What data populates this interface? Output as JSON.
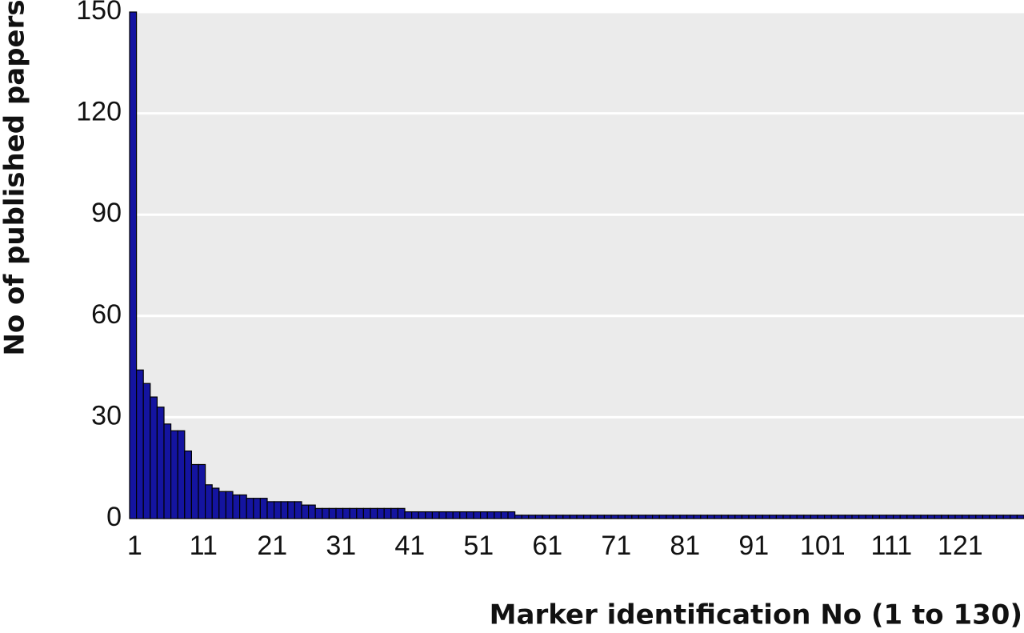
{
  "chart_data": {
    "type": "bar",
    "xlabel": "Marker identification No (1 to 130)",
    "ylabel": "No of published papers",
    "categories": [
      "1",
      null,
      null,
      null,
      null,
      null,
      null,
      null,
      null,
      null,
      "11",
      null,
      null,
      null,
      null,
      null,
      null,
      null,
      null,
      null,
      "21",
      null,
      null,
      null,
      null,
      null,
      null,
      null,
      null,
      null,
      "31",
      null,
      null,
      null,
      null,
      null,
      null,
      null,
      null,
      null,
      "41",
      null,
      null,
      null,
      null,
      null,
      null,
      null,
      null,
      null,
      "51",
      null,
      null,
      null,
      null,
      null,
      null,
      null,
      null,
      null,
      "61",
      null,
      null,
      null,
      null,
      null,
      null,
      null,
      null,
      null,
      "71",
      null,
      null,
      null,
      null,
      null,
      null,
      null,
      null,
      null,
      "81",
      null,
      null,
      null,
      null,
      null,
      null,
      null,
      null,
      null,
      "91",
      null,
      null,
      null,
      null,
      null,
      null,
      null,
      null,
      null,
      "101",
      null,
      null,
      null,
      null,
      null,
      null,
      null,
      null,
      null,
      "111",
      null,
      null,
      null,
      null,
      null,
      null,
      null,
      null,
      null,
      "121",
      null,
      null,
      null,
      null,
      null,
      null,
      null,
      null,
      null
    ],
    "values": [
      150,
      44,
      40,
      36,
      33,
      28,
      26,
      26,
      20,
      16,
      16,
      10,
      9,
      8,
      8,
      7,
      7,
      6,
      6,
      6,
      5,
      5,
      5,
      5,
      5,
      4,
      4,
      3,
      3,
      3,
      3,
      3,
      3,
      3,
      3,
      3,
      3,
      3,
      3,
      3,
      2,
      2,
      2,
      2,
      2,
      2,
      2,
      2,
      2,
      2,
      2,
      2,
      2,
      2,
      2,
      2,
      1,
      1,
      1,
      1,
      1,
      1,
      1,
      1,
      1,
      1,
      1,
      1,
      1,
      1,
      1,
      1,
      1,
      1,
      1,
      1,
      1,
      1,
      1,
      1,
      1,
      1,
      1,
      1,
      1,
      1,
      1,
      1,
      1,
      1,
      1,
      1,
      1,
      1,
      1,
      1,
      1,
      1,
      1,
      1,
      1,
      1,
      1,
      1,
      1,
      1,
      1,
      1,
      1,
      1,
      1,
      1,
      1,
      1,
      1,
      1,
      1,
      1,
      1,
      1,
      1,
      1,
      1,
      1,
      1,
      1,
      1,
      1,
      1,
      1
    ],
    "color": "#1414a0",
    "ylim": [
      0,
      150
    ],
    "yticks": [
      0,
      30,
      60,
      90,
      120,
      150
    ],
    "grid": true
  }
}
